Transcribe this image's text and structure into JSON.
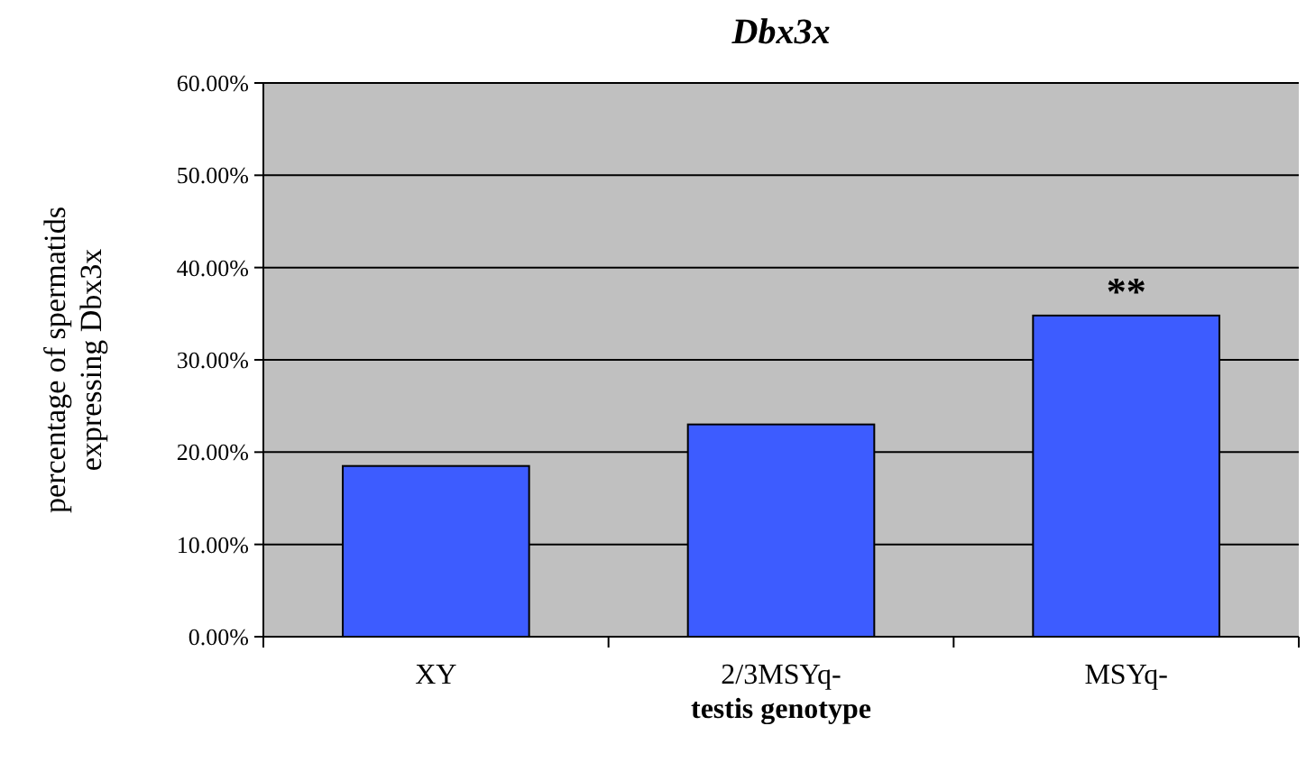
{
  "chart_data": {
    "type": "bar",
    "title": "Dbx3x",
    "xlabel": "testis genotype",
    "ylabel": "percentage of spermatids\nexpressing Dbx3x",
    "categories": [
      "XY",
      "2/3MSYq-",
      "MSYq-"
    ],
    "values": [
      18.5,
      23,
      34.8
    ],
    "color": "#3d5cff",
    "ylim": [
      0,
      60
    ],
    "yticks": [
      {
        "value": 0,
        "label": "0.00%"
      },
      {
        "value": 10,
        "label": "10.00%"
      },
      {
        "value": 20,
        "label": "20.00%"
      },
      {
        "value": 30,
        "label": "30.00%"
      },
      {
        "value": 40,
        "label": "40.00%"
      },
      {
        "value": 50,
        "label": "50.00%"
      },
      {
        "value": 60,
        "label": "60.00%"
      }
    ],
    "grid": "y",
    "annotations": [
      "**"
    ]
  }
}
